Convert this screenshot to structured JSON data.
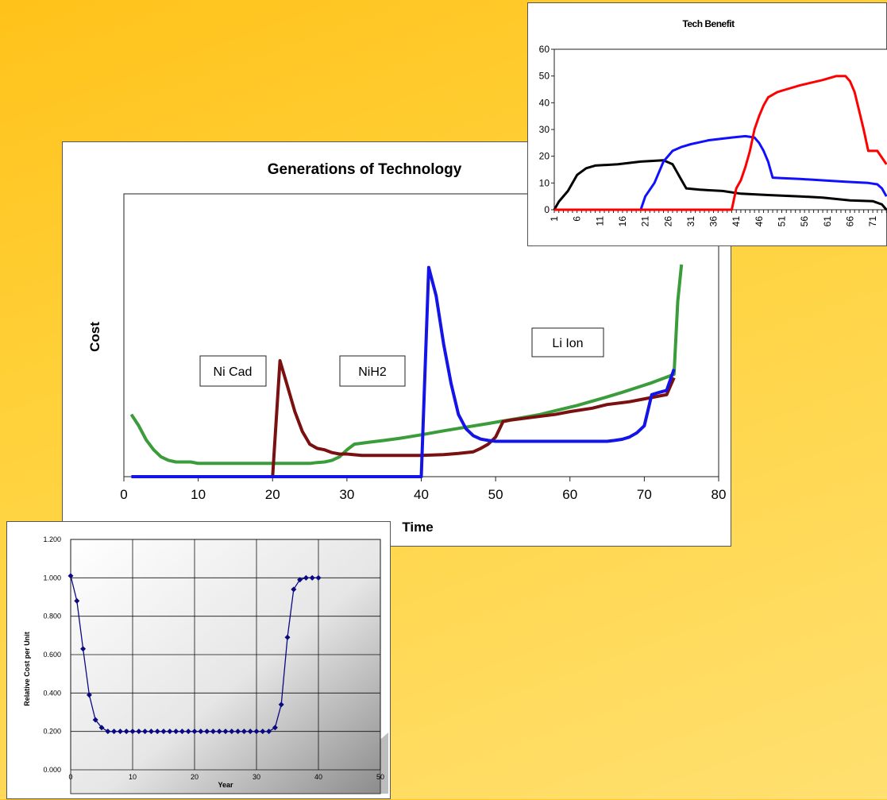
{
  "generations_chart": {
    "title": "Generations of Technology",
    "xlabel": "Time",
    "ylabel": "Cost",
    "annotations": [
      "Ni Cad",
      "NiH2",
      "Li Ion"
    ]
  },
  "tech_benefit_chart": {
    "title": "Tech Benefit"
  },
  "cost_chart": {
    "xlabel": "Year",
    "ylabel": "Relative Cost per Unit"
  },
  "chart_data": [
    {
      "type": "line",
      "title": "Generations of Technology",
      "xlabel": "Time",
      "ylabel": "Cost",
      "xlim": [
        0,
        80
      ],
      "xticks": [
        0,
        10,
        20,
        30,
        40,
        50,
        60,
        70,
        80
      ],
      "yticks": [],
      "ylim": [
        0,
        10
      ],
      "grid": false,
      "colors": {
        "green": "#3a9c3a",
        "darkred": "#7a1010",
        "blue": "#1414e6"
      },
      "annotations": [
        {
          "text": "Ni Cad",
          "x": 10.5,
          "y": 3.8
        },
        {
          "text": "NiH2",
          "x": 33.5,
          "y": 3.8
        },
        {
          "text": "Li Ion",
          "x": 57.5,
          "y": 4.5
        }
      ],
      "series": [
        {
          "color": "#3a9c3a",
          "points": [
            [
              1,
              2.2
            ],
            [
              2,
              1.8
            ],
            [
              3,
              1.3
            ],
            [
              4,
              0.95
            ],
            [
              5,
              0.7
            ],
            [
              6,
              0.58
            ],
            [
              7,
              0.52
            ],
            [
              8,
              0.52
            ],
            [
              9,
              0.52
            ],
            [
              10,
              0.47
            ],
            [
              15,
              0.47
            ],
            [
              20,
              0.47
            ],
            [
              25,
              0.47
            ],
            [
              26,
              0.5
            ],
            [
              27,
              0.52
            ],
            [
              28,
              0.58
            ],
            [
              29,
              0.7
            ],
            [
              30,
              0.95
            ],
            [
              31,
              1.15
            ],
            [
              33,
              1.22
            ],
            [
              35,
              1.28
            ],
            [
              37,
              1.35
            ],
            [
              40,
              1.48
            ],
            [
              43,
              1.62
            ],
            [
              46,
              1.75
            ],
            [
              49,
              1.88
            ],
            [
              51,
              1.97
            ],
            [
              53,
              2.06
            ],
            [
              56,
              2.2
            ],
            [
              58,
              2.33
            ],
            [
              61,
              2.52
            ],
            [
              63,
              2.67
            ],
            [
              65,
              2.82
            ],
            [
              67,
              2.98
            ],
            [
              69,
              3.15
            ],
            [
              71,
              3.32
            ],
            [
              73,
              3.52
            ],
            [
              74,
              3.62
            ],
            [
              74.5,
              6.2
            ],
            [
              75,
              7.5
            ]
          ]
        },
        {
          "color": "#7a1010",
          "points": [
            [
              20,
              0
            ],
            [
              21,
              4.1
            ],
            [
              22,
              3.2
            ],
            [
              23,
              2.3
            ],
            [
              24,
              1.6
            ],
            [
              25,
              1.15
            ],
            [
              26,
              1.0
            ],
            [
              27,
              0.95
            ],
            [
              28,
              0.85
            ],
            [
              29,
              0.8
            ],
            [
              30,
              0.8
            ],
            [
              32,
              0.75
            ],
            [
              35,
              0.75
            ],
            [
              40,
              0.75
            ],
            [
              43,
              0.78
            ],
            [
              45,
              0.82
            ],
            [
              47,
              0.88
            ],
            [
              48,
              1.0
            ],
            [
              49,
              1.15
            ],
            [
              50,
              1.4
            ],
            [
              51,
              1.95
            ],
            [
              52,
              2.0
            ],
            [
              55,
              2.1
            ],
            [
              58,
              2.2
            ],
            [
              60,
              2.3
            ],
            [
              63,
              2.42
            ],
            [
              65,
              2.55
            ],
            [
              68,
              2.65
            ],
            [
              70,
              2.75
            ],
            [
              72,
              2.85
            ],
            [
              73,
              2.9
            ],
            [
              74,
              3.5
            ]
          ]
        },
        {
          "color": "#1414e6",
          "points": [
            [
              1,
              0
            ],
            [
              40,
              0
            ],
            [
              41,
              7.4
            ],
            [
              42,
              6.4
            ],
            [
              43,
              4.7
            ],
            [
              44,
              3.3
            ],
            [
              45,
              2.2
            ],
            [
              46,
              1.7
            ],
            [
              47,
              1.45
            ],
            [
              48,
              1.33
            ],
            [
              49,
              1.28
            ],
            [
              50,
              1.25
            ],
            [
              55,
              1.25
            ],
            [
              60,
              1.25
            ],
            [
              65,
              1.25
            ],
            [
              66,
              1.28
            ],
            [
              67,
              1.32
            ],
            [
              68,
              1.4
            ],
            [
              69,
              1.55
            ],
            [
              70,
              1.8
            ],
            [
              71,
              2.9
            ],
            [
              72,
              2.98
            ],
            [
              73,
              3.05
            ],
            [
              74,
              3.8
            ]
          ]
        }
      ]
    },
    {
      "type": "line",
      "title": "Tech Benefit",
      "xlim": [
        1,
        74
      ],
      "ylim": [
        0,
        60
      ],
      "yticks": [
        0,
        10,
        20,
        30,
        40,
        50,
        60
      ],
      "categories_shown": [
        "1",
        "6",
        "11",
        "16",
        "21",
        "26",
        "31",
        "36",
        "41",
        "46",
        "51",
        "56",
        "61",
        "66",
        "71"
      ],
      "colors": {
        "black": "#000000",
        "blue": "#1010ff",
        "red": "#ff0000"
      },
      "series": [
        {
          "color": "#000000",
          "points": [
            [
              1,
              0
            ],
            [
              2,
              3
            ],
            [
              4,
              7
            ],
            [
              6,
              13
            ],
            [
              8,
              15.5
            ],
            [
              10,
              16.5
            ],
            [
              15,
              17
            ],
            [
              20,
              18
            ],
            [
              25,
              18.5
            ],
            [
              27,
              17
            ],
            [
              29,
              11
            ],
            [
              30,
              8
            ],
            [
              33,
              7.5
            ],
            [
              38,
              7
            ],
            [
              42,
              6
            ],
            [
              48,
              5.5
            ],
            [
              55,
              5
            ],
            [
              60,
              4.5
            ],
            [
              66,
              3.5
            ],
            [
              71,
              3.2
            ],
            [
              73,
              2
            ],
            [
              74,
              0
            ]
          ]
        },
        {
          "color": "#1010ff",
          "points": [
            [
              19,
              0
            ],
            [
              20,
              0
            ],
            [
              21,
              5
            ],
            [
              23,
              10
            ],
            [
              25,
              18
            ],
            [
              27,
              22
            ],
            [
              29,
              23.5
            ],
            [
              31,
              24.5
            ],
            [
              35,
              26
            ],
            [
              40,
              27
            ],
            [
              43,
              27.5
            ],
            [
              45,
              27
            ],
            [
              46,
              25
            ],
            [
              47,
              22
            ],
            [
              48,
              18
            ],
            [
              49,
              12
            ],
            [
              51,
              11.8
            ],
            [
              55,
              11.5
            ],
            [
              60,
              11
            ],
            [
              65,
              10.5
            ],
            [
              70,
              10
            ],
            [
              72,
              9.5
            ],
            [
              73,
              8
            ],
            [
              74,
              5
            ]
          ]
        },
        {
          "color": "#ff0000",
          "points": [
            [
              1,
              0
            ],
            [
              39,
              0
            ],
            [
              40,
              0
            ],
            [
              41,
              8
            ],
            [
              42,
              11
            ],
            [
              43,
              16
            ],
            [
              44,
              22
            ],
            [
              45,
              30
            ],
            [
              46,
              35
            ],
            [
              47,
              39
            ],
            [
              48,
              42
            ],
            [
              50,
              44
            ],
            [
              52,
              45
            ],
            [
              55,
              46.5
            ],
            [
              60,
              48.5
            ],
            [
              63,
              50
            ],
            [
              65,
              50
            ],
            [
              66,
              48
            ],
            [
              67,
              44
            ],
            [
              68,
              37
            ],
            [
              69,
              30
            ],
            [
              70,
              22
            ],
            [
              72,
              22
            ],
            [
              74,
              17
            ]
          ]
        }
      ]
    },
    {
      "type": "line",
      "xlabel": "Year",
      "ylabel": "Relative Cost per Unit",
      "xlim": [
        0,
        50
      ],
      "ylim": [
        0,
        1.2
      ],
      "xticks": [
        0,
        10,
        20,
        30,
        40,
        50
      ],
      "yticks": [
        "0.000",
        "0.200",
        "0.400",
        "0.600",
        "0.800",
        "1.000",
        "1.200"
      ],
      "grid": true,
      "marker": "diamond",
      "colors": {
        "line": "#0a0a80"
      },
      "series": [
        {
          "x": [
            0,
            1,
            2,
            3,
            4,
            5,
            6,
            7,
            8,
            9,
            10,
            11,
            12,
            13,
            14,
            15,
            16,
            17,
            18,
            19,
            20,
            21,
            22,
            23,
            24,
            25,
            26,
            27,
            28,
            29,
            30,
            31,
            32,
            33,
            34,
            35,
            36,
            37,
            38,
            39,
            40
          ],
          "y": [
            1.01,
            0.88,
            0.63,
            0.39,
            0.26,
            0.22,
            0.2,
            0.2,
            0.2,
            0.2,
            0.2,
            0.2,
            0.2,
            0.2,
            0.2,
            0.2,
            0.2,
            0.2,
            0.2,
            0.2,
            0.2,
            0.2,
            0.2,
            0.2,
            0.2,
            0.2,
            0.2,
            0.2,
            0.2,
            0.2,
            0.2,
            0.2,
            0.2,
            0.22,
            0.34,
            0.69,
            0.94,
            0.99,
            1.0,
            1.0,
            1.0
          ]
        }
      ]
    }
  ]
}
